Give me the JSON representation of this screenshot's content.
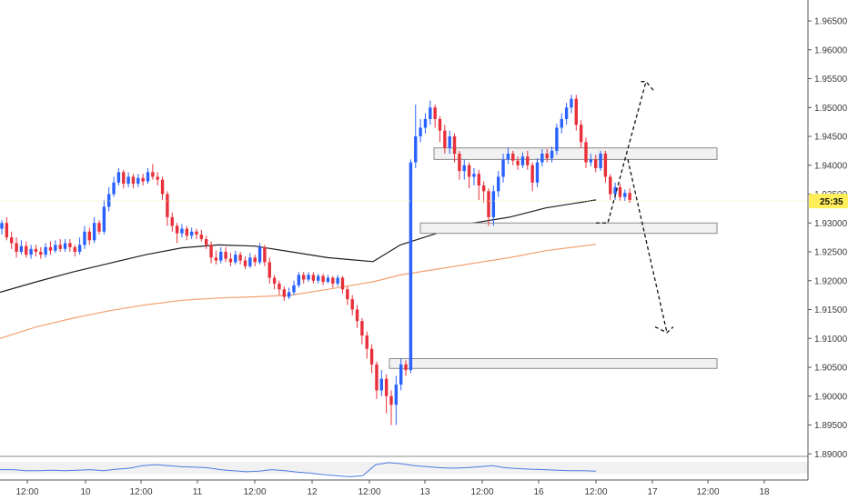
{
  "price_badge": {
    "label": "25:35"
  },
  "chart_data": {
    "type": "candlestick",
    "title": "",
    "xlabel": "",
    "ylabel": "",
    "x_ticks": [
      "12:00",
      "10",
      "12:00",
      "11",
      "12:00",
      "12",
      "12:00",
      "13",
      "12:00",
      "16",
      "12:00",
      "17",
      "12:00",
      "18"
    ],
    "y_ticks": [
      "1.96500",
      "1.96000",
      "1.95500",
      "1.95000",
      "1.94500",
      "1.94000",
      "1.93500",
      "1.93000",
      "1.92500",
      "1.92000",
      "1.91500",
      "1.91000",
      "1.90500",
      "1.90000",
      "1.89500",
      "1.89000"
    ],
    "ylim": [
      1.8895,
      1.9695
    ],
    "grid": false,
    "current_price": 1.9338,
    "colors": {
      "up": "#2962ff",
      "down": "#e8303a",
      "ma_fast": "#1f1f1f",
      "ma_slow": "#f3a071",
      "oscillator": "#4a7be0"
    },
    "ma_fast": [
      1.918,
      1.9198,
      1.9215,
      1.923,
      1.9245,
      1.9257,
      1.9262,
      1.926,
      1.925,
      1.924,
      1.9233,
      1.9262,
      1.9282,
      1.93,
      1.931,
      1.9326,
      1.934
    ],
    "ma_slow": [
      1.91,
      1.912,
      1.9135,
      1.9148,
      1.9158,
      1.9166,
      1.917,
      1.9172,
      1.9175,
      1.9185,
      1.9198,
      1.921,
      1.922,
      1.923,
      1.924,
      1.9252,
      1.9263
    ],
    "ma_x": [
      0,
      40,
      80,
      120,
      160,
      200,
      240,
      280,
      320,
      360,
      410,
      440,
      480,
      520,
      560,
      600,
      655
    ],
    "candles": [
      [
        1.929,
        1.93,
        1.9305,
        1.928
      ],
      [
        1.93,
        1.9275,
        1.931,
        1.927
      ],
      [
        1.9275,
        1.9265,
        1.9285,
        1.9255
      ],
      [
        1.9265,
        1.925,
        1.9275,
        1.924
      ],
      [
        1.925,
        1.926,
        1.927,
        1.9245
      ],
      [
        1.926,
        1.9245,
        1.9268,
        1.924
      ],
      [
        1.9245,
        1.9255,
        1.9262,
        1.9238
      ],
      [
        1.9255,
        1.925,
        1.9262,
        1.9242
      ],
      [
        1.925,
        1.9245,
        1.9258,
        1.9238
      ],
      [
        1.9245,
        1.9258,
        1.9265,
        1.924
      ],
      [
        1.9258,
        1.9252,
        1.9268,
        1.9245
      ],
      [
        1.9252,
        1.9262,
        1.927,
        1.9248
      ],
      [
        1.9262,
        1.9255,
        1.9272,
        1.925
      ],
      [
        1.9255,
        1.9265,
        1.9272,
        1.925
      ],
      [
        1.9265,
        1.9258,
        1.9272,
        1.925
      ],
      [
        1.9258,
        1.925,
        1.9262,
        1.9242
      ],
      [
        1.925,
        1.9262,
        1.9275,
        1.9245
      ],
      [
        1.9262,
        1.9285,
        1.9295,
        1.9255
      ],
      [
        1.9285,
        1.927,
        1.9292,
        1.9262
      ],
      [
        1.927,
        1.93,
        1.931,
        1.9265
      ],
      [
        1.93,
        1.9285,
        1.9305,
        1.928
      ],
      [
        1.9285,
        1.9328,
        1.934,
        1.928
      ],
      [
        1.9328,
        1.935,
        1.9362,
        1.932
      ],
      [
        1.935,
        1.937,
        1.938,
        1.9345
      ],
      [
        1.937,
        1.9388,
        1.9395,
        1.9365
      ],
      [
        1.9388,
        1.9368,
        1.9392,
        1.936
      ],
      [
        1.9368,
        1.938,
        1.9388,
        1.9362
      ],
      [
        1.938,
        1.9368,
        1.9385,
        1.936
      ],
      [
        1.9368,
        1.9378,
        1.9385,
        1.9362
      ],
      [
        1.9378,
        1.9372,
        1.9385,
        1.9365
      ],
      [
        1.9372,
        1.9388,
        1.9395,
        1.9368
      ],
      [
        1.9388,
        1.938,
        1.9402,
        1.9375
      ],
      [
        1.938,
        1.9375,
        1.9388,
        1.9365
      ],
      [
        1.9375,
        1.935,
        1.938,
        1.934
      ],
      [
        1.935,
        1.931,
        1.9355,
        1.9295
      ],
      [
        1.931,
        1.9295,
        1.9318,
        1.9285
      ],
      [
        1.9295,
        1.9282,
        1.93,
        1.9265
      ],
      [
        1.9282,
        1.929,
        1.9298,
        1.9275
      ],
      [
        1.929,
        1.9278,
        1.9295,
        1.927
      ],
      [
        1.9278,
        1.9285,
        1.9292,
        1.9272
      ],
      [
        1.9285,
        1.928,
        1.929,
        1.9272
      ],
      [
        1.928,
        1.9272,
        1.9288,
        1.9268
      ],
      [
        1.9272,
        1.9262,
        1.9278,
        1.9255
      ],
      [
        1.9262,
        1.924,
        1.9268,
        1.923
      ],
      [
        1.924,
        1.9235,
        1.9252,
        1.9228
      ],
      [
        1.9235,
        1.925,
        1.9258,
        1.923
      ],
      [
        1.925,
        1.9238,
        1.9258,
        1.9232
      ],
      [
        1.9238,
        1.9232,
        1.9248,
        1.9225
      ],
      [
        1.9232,
        1.9245,
        1.9252,
        1.9228
      ],
      [
        1.9245,
        1.9235,
        1.925,
        1.9228
      ],
      [
        1.9235,
        1.9225,
        1.9242,
        1.922
      ],
      [
        1.9225,
        1.924,
        1.9248,
        1.9222
      ],
      [
        1.924,
        1.9232,
        1.9245,
        1.9225
      ],
      [
        1.9232,
        1.9258,
        1.9265,
        1.9228
      ],
      [
        1.9258,
        1.9232,
        1.9262,
        1.9225
      ],
      [
        1.9232,
        1.9205,
        1.924,
        1.9195
      ],
      [
        1.9205,
        1.9195,
        1.921,
        1.9185
      ],
      [
        1.9195,
        1.9185,
        1.92,
        1.9175
      ],
      [
        1.9185,
        1.9172,
        1.919,
        1.9165
      ],
      [
        1.9172,
        1.918,
        1.9188,
        1.9168
      ],
      [
        1.918,
        1.9192,
        1.92,
        1.9175
      ],
      [
        1.9192,
        1.921,
        1.9215,
        1.9188
      ],
      [
        1.921,
        1.9202,
        1.9215,
        1.9195
      ],
      [
        1.9202,
        1.921,
        1.9215,
        1.9198
      ],
      [
        1.921,
        1.92,
        1.9215,
        1.9195
      ],
      [
        1.92,
        1.9208,
        1.9212,
        1.9195
      ],
      [
        1.9208,
        1.9198,
        1.9212,
        1.9192
      ],
      [
        1.9198,
        1.9205,
        1.921,
        1.9195
      ],
      [
        1.9205,
        1.9195,
        1.9208,
        1.9188
      ],
      [
        1.9195,
        1.9205,
        1.921,
        1.919
      ],
      [
        1.9205,
        1.9185,
        1.9208,
        1.9178
      ],
      [
        1.9185,
        1.9168,
        1.919,
        1.9158
      ],
      [
        1.9168,
        1.915,
        1.9175,
        1.914
      ],
      [
        1.915,
        1.913,
        1.9158,
        1.9118
      ],
      [
        1.913,
        1.9105,
        1.9135,
        1.909
      ],
      [
        1.9105,
        1.9082,
        1.9112,
        1.9065
      ],
      [
        1.9082,
        1.9055,
        1.909,
        1.904
      ],
      [
        1.9055,
        1.901,
        1.906,
        1.8995
      ],
      [
        1.901,
        1.903,
        1.9045,
        1.9
      ],
      [
        1.903,
        1.9,
        1.9038,
        1.897
      ],
      [
        1.9,
        1.8985,
        1.901,
        1.895
      ],
      [
        1.8985,
        1.902,
        1.9035,
        1.895
      ],
      [
        1.902,
        1.9055,
        1.9065,
        1.901
      ],
      [
        1.9055,
        1.9045,
        1.9062,
        1.9035
      ],
      [
        1.9045,
        1.9405,
        1.941,
        1.904
      ],
      [
        1.9405,
        1.945,
        1.9505,
        1.9395
      ],
      [
        1.945,
        1.9465,
        1.948,
        1.944
      ],
      [
        1.9465,
        1.948,
        1.949,
        1.9455
      ],
      [
        1.948,
        1.95,
        1.9512,
        1.947
      ],
      [
        1.95,
        1.948,
        1.9505,
        1.9465
      ],
      [
        1.948,
        1.946,
        1.9485,
        1.944
      ],
      [
        1.946,
        1.943,
        1.947,
        1.942
      ],
      [
        1.943,
        1.945,
        1.946,
        1.942
      ],
      [
        1.945,
        1.942,
        1.9455,
        1.9405
      ],
      [
        1.942,
        1.939,
        1.9425,
        1.9375
      ],
      [
        1.939,
        1.94,
        1.941,
        1.9375
      ],
      [
        1.94,
        1.938,
        1.9405,
        1.936
      ],
      [
        1.938,
        1.9385,
        1.9395,
        1.9365
      ],
      [
        1.9385,
        1.9365,
        1.9392,
        1.934
      ],
      [
        1.9365,
        1.9355,
        1.9372,
        1.9335
      ],
      [
        1.9355,
        1.931,
        1.936,
        1.9295
      ],
      [
        1.931,
        1.9355,
        1.9365,
        1.9295
      ],
      [
        1.9355,
        1.938,
        1.939,
        1.9345
      ],
      [
        1.938,
        1.941,
        1.942,
        1.937
      ],
      [
        1.941,
        1.942,
        1.943,
        1.9402
      ],
      [
        1.942,
        1.9408,
        1.9425,
        1.94
      ],
      [
        1.9408,
        1.94,
        1.9415,
        1.9392
      ],
      [
        1.94,
        1.9415,
        1.9422,
        1.9395
      ],
      [
        1.9415,
        1.94,
        1.9425,
        1.9392
      ],
      [
        1.94,
        1.937,
        1.9405,
        1.9355
      ],
      [
        1.937,
        1.9405,
        1.9412,
        1.9362
      ],
      [
        1.9405,
        1.942,
        1.9428,
        1.9398
      ],
      [
        1.942,
        1.9412,
        1.9428,
        1.9405
      ],
      [
        1.9412,
        1.9425,
        1.9432,
        1.9405
      ],
      [
        1.9425,
        1.9465,
        1.9472,
        1.9418
      ],
      [
        1.9465,
        1.948,
        1.949,
        1.9455
      ],
      [
        1.948,
        1.95,
        1.9508,
        1.947
      ],
      [
        1.95,
        1.9515,
        1.9522,
        1.949
      ],
      [
        1.9515,
        1.947,
        1.9522,
        1.946
      ],
      [
        1.947,
        1.944,
        1.9478,
        1.943
      ],
      [
        1.944,
        1.9405,
        1.9448,
        1.9395
      ],
      [
        1.9405,
        1.941,
        1.942,
        1.9398
      ],
      [
        1.941,
        1.9395,
        1.9418,
        1.9388
      ],
      [
        1.9395,
        1.942,
        1.9425,
        1.939
      ],
      [
        1.942,
        1.938,
        1.9425,
        1.937
      ],
      [
        1.938,
        1.935,
        1.9385,
        1.934
      ],
      [
        1.935,
        1.9362,
        1.937,
        1.934
      ],
      [
        1.9362,
        1.9345,
        1.9368,
        1.9338
      ],
      [
        1.9345,
        1.9352,
        1.9358,
        1.9338
      ],
      [
        1.9352,
        1.934,
        1.936,
        1.9335
      ]
    ],
    "zones": [
      {
        "top": 1.943,
        "bottom": 1.941
      },
      {
        "top": 1.93,
        "bottom": 1.9282
      },
      {
        "top": 1.9065,
        "bottom": 1.9048
      }
    ],
    "projection": [
      [
        655,
        1.93
      ],
      [
        668,
        1.93
      ],
      [
        710,
        1.9545
      ],
      [
        718,
        1.953
      ],
      [
        702,
        1.9545
      ],
      [
        710,
        1.9545
      ],
      [
        690,
        1.941
      ],
      [
        733,
        1.911
      ],
      [
        726,
        1.9125
      ],
      [
        733,
        1.911
      ],
      [
        740,
        1.912
      ]
    ],
    "oscillator": [
      52,
      52,
      50,
      50,
      51,
      50,
      51,
      52,
      50,
      53,
      55,
      60,
      62,
      60,
      58,
      57,
      56,
      52,
      50,
      48,
      49,
      52,
      50,
      47,
      45,
      42,
      40,
      38,
      40,
      62,
      66,
      64,
      60,
      58,
      56,
      55,
      56,
      58,
      60,
      56,
      54,
      53,
      52,
      51,
      50,
      50,
      49
    ]
  }
}
